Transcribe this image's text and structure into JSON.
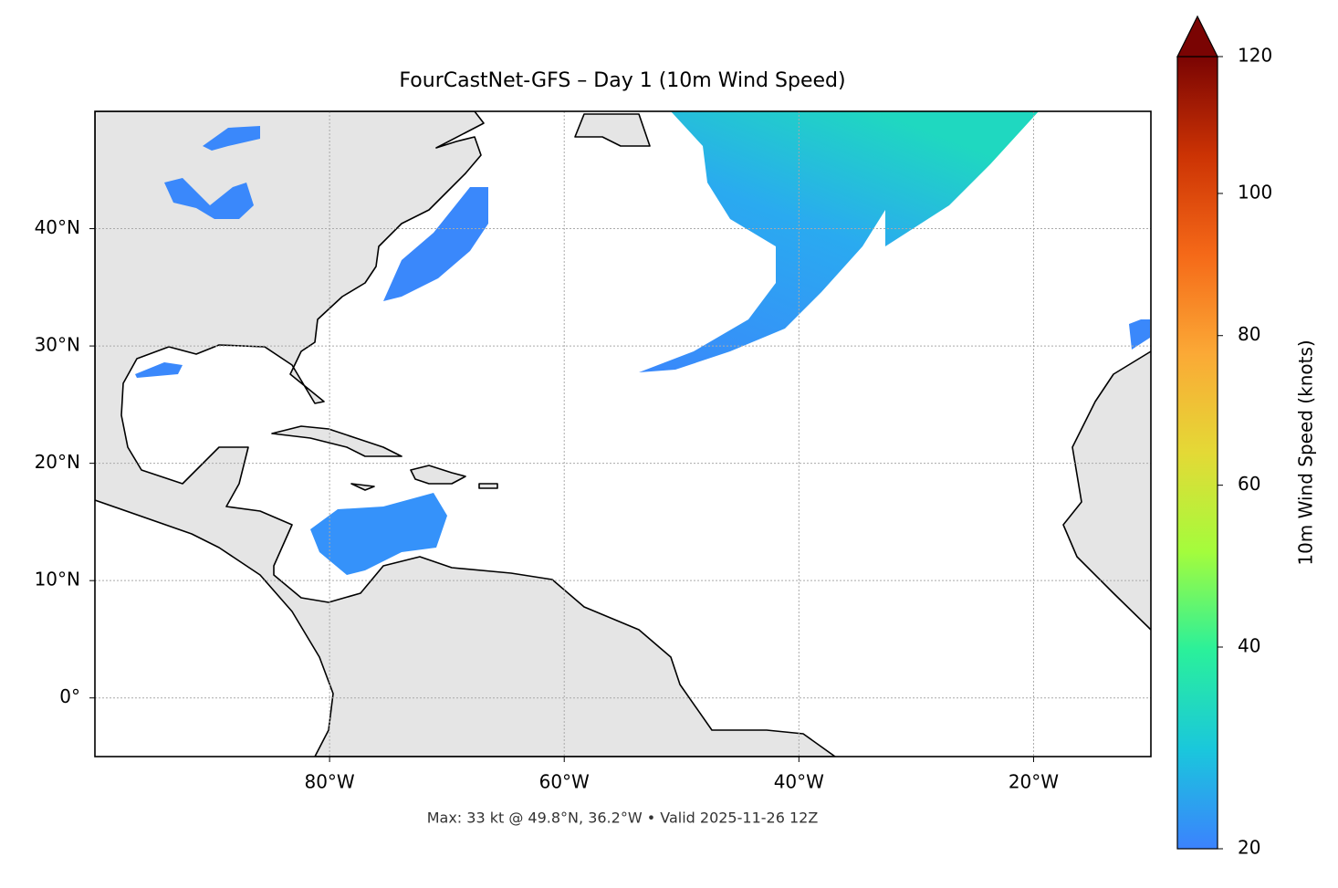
{
  "chart_data": {
    "type": "map",
    "title": "FourCastNet-GFS – Day 1 (10m Wind Speed)",
    "footer": "Max: 33 kt @ 49.8°N, 36.2°W • Valid 2025-11-26 12Z",
    "xlim": [
      -100,
      -10
    ],
    "ylim": [
      -5,
      50
    ],
    "xticks": [
      {
        "value": -80,
        "label": "80°W"
      },
      {
        "value": -60,
        "label": "60°W"
      },
      {
        "value": -40,
        "label": "40°W"
      },
      {
        "value": -20,
        "label": "20°W"
      }
    ],
    "yticks": [
      {
        "value": 0,
        "label": "0°"
      },
      {
        "value": 10,
        "label": "10°N"
      },
      {
        "value": 20,
        "label": "20°N"
      },
      {
        "value": 30,
        "label": "30°N"
      },
      {
        "value": 40,
        "label": "40°N"
      }
    ],
    "grid": true,
    "colorbar": {
      "label": "10m Wind Speed (knots)",
      "lim": [
        20,
        120
      ],
      "ticks": [
        20,
        40,
        60,
        80,
        100,
        120
      ],
      "gamma": 0.85,
      "extend": "max",
      "colors": [
        "#3b82fe",
        "#1ac7dc",
        "#2af09b",
        "#a4fc3c",
        "#e4d936",
        "#fba936",
        "#f56918",
        "#cc3304",
        "#7a0403"
      ]
    }
  }
}
